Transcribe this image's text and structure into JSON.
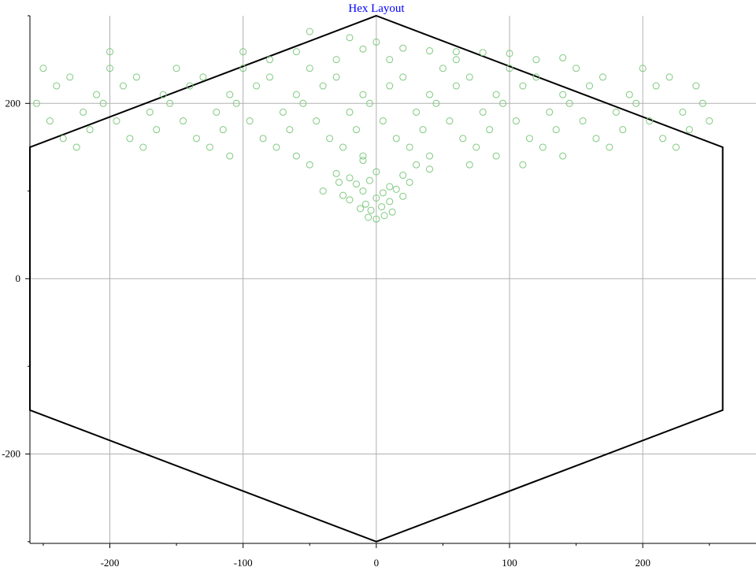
{
  "chart_data": {
    "type": "scatter",
    "title": "Hex Layout",
    "xlabel": "",
    "ylabel": "",
    "xlim": [
      -260,
      285
    ],
    "ylim": [
      -302,
      300
    ],
    "x_ticks": [
      -200,
      -100,
      0,
      100,
      200
    ],
    "y_ticks": [
      -200,
      0,
      200
    ],
    "grid": true,
    "hexagon": [
      [
        0,
        300
      ],
      [
        260,
        150
      ],
      [
        260,
        -150
      ],
      [
        0,
        -300
      ],
      [
        -260,
        -150
      ],
      [
        -260,
        150
      ]
    ],
    "colors": {
      "points": "#7fc97f",
      "hexagon": "#000000",
      "grid": "#b0b0b0",
      "title": "#0000ff"
    },
    "points": [
      [
        -50,
        282
      ],
      [
        -20,
        275
      ],
      [
        0,
        270
      ],
      [
        -10,
        262
      ],
      [
        20,
        263
      ],
      [
        40,
        260
      ],
      [
        -200,
        259
      ],
      [
        -100,
        259
      ],
      [
        -60,
        259
      ],
      [
        60,
        259
      ],
      [
        80,
        258
      ],
      [
        100,
        257
      ],
      [
        -30,
        250
      ],
      [
        -80,
        250
      ],
      [
        10,
        250
      ],
      [
        60,
        250
      ],
      [
        120,
        250
      ],
      [
        140,
        252
      ],
      [
        -250,
        240
      ],
      [
        -200,
        240
      ],
      [
        -150,
        240
      ],
      [
        -100,
        240
      ],
      [
        -50,
        240
      ],
      [
        50,
        240
      ],
      [
        100,
        240
      ],
      [
        150,
        240
      ],
      [
        200,
        240
      ],
      [
        -230,
        230
      ],
      [
        -180,
        230
      ],
      [
        -130,
        230
      ],
      [
        -80,
        230
      ],
      [
        -30,
        230
      ],
      [
        20,
        230
      ],
      [
        70,
        230
      ],
      [
        120,
        230
      ],
      [
        170,
        230
      ],
      [
        220,
        230
      ],
      [
        -240,
        220
      ],
      [
        -190,
        220
      ],
      [
        -140,
        220
      ],
      [
        -90,
        220
      ],
      [
        -40,
        220
      ],
      [
        10,
        220
      ],
      [
        60,
        220
      ],
      [
        110,
        220
      ],
      [
        160,
        220
      ],
      [
        210,
        220
      ],
      [
        240,
        220
      ],
      [
        -210,
        210
      ],
      [
        -160,
        210
      ],
      [
        -110,
        210
      ],
      [
        -60,
        210
      ],
      [
        -10,
        210
      ],
      [
        40,
        210
      ],
      [
        90,
        210
      ],
      [
        140,
        210
      ],
      [
        190,
        210
      ],
      [
        -255,
        200
      ],
      [
        -205,
        200
      ],
      [
        -155,
        200
      ],
      [
        -105,
        200
      ],
      [
        -55,
        200
      ],
      [
        -5,
        200
      ],
      [
        45,
        200
      ],
      [
        95,
        200
      ],
      [
        145,
        200
      ],
      [
        195,
        200
      ],
      [
        245,
        200
      ],
      [
        -220,
        190
      ],
      [
        -170,
        190
      ],
      [
        -120,
        190
      ],
      [
        -70,
        190
      ],
      [
        -20,
        190
      ],
      [
        30,
        190
      ],
      [
        80,
        190
      ],
      [
        130,
        190
      ],
      [
        180,
        190
      ],
      [
        230,
        190
      ],
      [
        -245,
        180
      ],
      [
        -195,
        180
      ],
      [
        -145,
        180
      ],
      [
        -95,
        180
      ],
      [
        -45,
        180
      ],
      [
        5,
        180
      ],
      [
        55,
        180
      ],
      [
        105,
        180
      ],
      [
        155,
        180
      ],
      [
        205,
        180
      ],
      [
        250,
        180
      ],
      [
        -215,
        170
      ],
      [
        -165,
        170
      ],
      [
        -115,
        170
      ],
      [
        -65,
        170
      ],
      [
        -15,
        170
      ],
      [
        35,
        170
      ],
      [
        85,
        170
      ],
      [
        135,
        170
      ],
      [
        185,
        170
      ],
      [
        235,
        170
      ],
      [
        -235,
        160
      ],
      [
        -185,
        160
      ],
      [
        -135,
        160
      ],
      [
        -85,
        160
      ],
      [
        -35,
        160
      ],
      [
        15,
        160
      ],
      [
        65,
        160
      ],
      [
        115,
        160
      ],
      [
        165,
        160
      ],
      [
        215,
        160
      ],
      [
        -225,
        150
      ],
      [
        -175,
        150
      ],
      [
        -125,
        150
      ],
      [
        -75,
        150
      ],
      [
        -25,
        150
      ],
      [
        25,
        150
      ],
      [
        75,
        150
      ],
      [
        125,
        150
      ],
      [
        175,
        150
      ],
      [
        225,
        150
      ],
      [
        -110,
        140
      ],
      [
        -60,
        140
      ],
      [
        -10,
        140
      ],
      [
        40,
        140
      ],
      [
        90,
        140
      ],
      [
        140,
        140
      ],
      [
        -50,
        130
      ],
      [
        -10,
        135
      ],
      [
        30,
        130
      ],
      [
        70,
        130
      ],
      [
        110,
        130
      ],
      [
        -30,
        120
      ],
      [
        -20,
        115
      ],
      [
        0,
        122
      ],
      [
        20,
        118
      ],
      [
        40,
        125
      ],
      [
        -28,
        110
      ],
      [
        -15,
        108
      ],
      [
        -5,
        112
      ],
      [
        10,
        105
      ],
      [
        25,
        110
      ],
      [
        -40,
        100
      ],
      [
        -25,
        95
      ],
      [
        -10,
        100
      ],
      [
        5,
        98
      ],
      [
        15,
        102
      ],
      [
        -20,
        90
      ],
      [
        -8,
        85
      ],
      [
        0,
        92
      ],
      [
        10,
        88
      ],
      [
        20,
        94
      ],
      [
        -12,
        80
      ],
      [
        -4,
        78
      ],
      [
        4,
        82
      ],
      [
        12,
        76
      ],
      [
        -6,
        70
      ],
      [
        0,
        68
      ],
      [
        6,
        72
      ]
    ]
  }
}
